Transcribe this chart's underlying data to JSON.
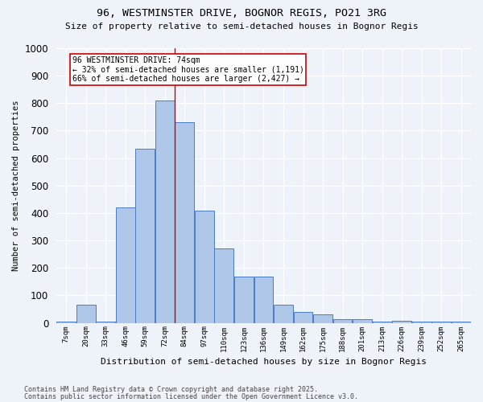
{
  "title1": "96, WESTMINSTER DRIVE, BOGNOR REGIS, PO21 3RG",
  "title2": "Size of property relative to semi-detached houses in Bognor Regis",
  "xlabel": "Distribution of semi-detached houses by size in Bognor Regis",
  "ylabel": "Number of semi-detached properties",
  "bar_labels": [
    "7sqm",
    "20sqm",
    "33sqm",
    "46sqm",
    "59sqm",
    "72sqm",
    "84sqm",
    "97sqm",
    "110sqm",
    "123sqm",
    "136sqm",
    "149sqm",
    "162sqm",
    "175sqm",
    "188sqm",
    "201sqm",
    "213sqm",
    "226sqm",
    "239sqm",
    "252sqm",
    "265sqm"
  ],
  "bar_values": [
    5,
    65,
    5,
    420,
    635,
    810,
    730,
    410,
    270,
    170,
    170,
    65,
    40,
    30,
    15,
    15,
    5,
    8,
    5,
    5,
    5
  ],
  "bar_color": "#aec6e8",
  "bar_edge_color": "#4a7cc7",
  "property_bar_index": 5,
  "annotation_title": "96 WESTMINSTER DRIVE: 74sqm",
  "annotation_line1": "← 32% of semi-detached houses are smaller (1,191)",
  "annotation_line2": "66% of semi-detached houses are larger (2,427) →",
  "annotation_box_color": "#ffffff",
  "annotation_box_edge": "#cc0000",
  "vline_color": "#cc0000",
  "ylim": [
    0,
    1000
  ],
  "yticks": [
    0,
    100,
    200,
    300,
    400,
    500,
    600,
    700,
    800,
    900,
    1000
  ],
  "footer1": "Contains HM Land Registry data © Crown copyright and database right 2025.",
  "footer2": "Contains public sector information licensed under the Open Government Licence v3.0.",
  "background_color": "#eef2f9",
  "grid_color": "#ffffff"
}
